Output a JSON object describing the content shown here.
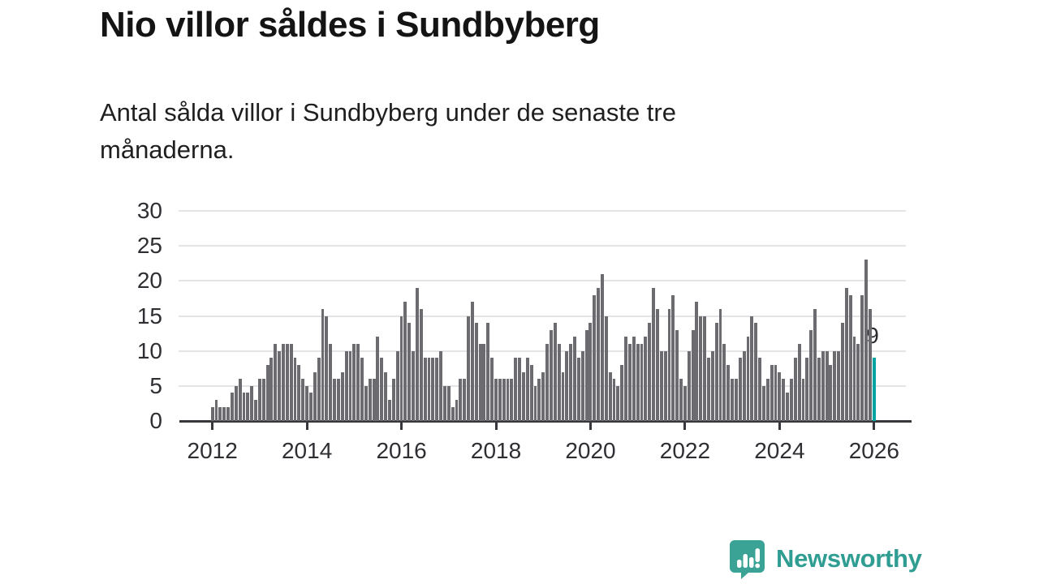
{
  "header": {
    "title": "Nio villor såldes i Sundbyberg",
    "subtitle": "Antal sålda villor i Sundbyberg under de senaste tre månaderna."
  },
  "colors": {
    "bar": "#6b6b70",
    "highlight": "#00a5a2",
    "gridline": "#e4e4e7",
    "axis": "#38383c",
    "brand_teal": "#3aa396"
  },
  "branding": {
    "name": "Newsworthy",
    "icon": "bar-chart-speech-bubble-icon"
  },
  "chart_data": {
    "type": "bar",
    "title": "Nio villor såldes i Sundbyberg",
    "subtitle": "Antal sålda villor i Sundbyberg under de senaste tre månaderna.",
    "unit": "antal sålda villor (rullande tre månader)",
    "frequency": "monthly",
    "x_start": "2012-01",
    "x_end": "2026-01",
    "x_tick_labels": [
      "2012",
      "2014",
      "2016",
      "2018",
      "2020",
      "2022",
      "2024",
      "2026"
    ],
    "y_ticks": [
      0,
      5,
      10,
      15,
      20,
      25,
      30
    ],
    "ylim": [
      0,
      30
    ],
    "grid": true,
    "highlight_last": true,
    "last_value_label": "9",
    "values": [
      2,
      3,
      2,
      2,
      2,
      4,
      5,
      6,
      4,
      4,
      5,
      3,
      6,
      6,
      8,
      9,
      11,
      10,
      11,
      11,
      11,
      9,
      8,
      6,
      5,
      4,
      7,
      9,
      16,
      15,
      11,
      6,
      6,
      7,
      10,
      10,
      11,
      11,
      9,
      5,
      6,
      6,
      12,
      9,
      7,
      3,
      6,
      10,
      15,
      17,
      14,
      10,
      19,
      16,
      9,
      9,
      9,
      9,
      10,
      5,
      5,
      2,
      3,
      6,
      6,
      15,
      17,
      14,
      11,
      11,
      14,
      9,
      6,
      6,
      6,
      6,
      6,
      9,
      9,
      7,
      9,
      8,
      5,
      6,
      7,
      11,
      13,
      14,
      11,
      7,
      10,
      11,
      12,
      9,
      10,
      13,
      14,
      18,
      19,
      21,
      15,
      7,
      6,
      5,
      8,
      12,
      11,
      12,
      11,
      11,
      12,
      14,
      19,
      16,
      10,
      10,
      16,
      18,
      13,
      6,
      5,
      10,
      13,
      17,
      15,
      15,
      9,
      10,
      14,
      16,
      11,
      8,
      6,
      6,
      9,
      10,
      12,
      15,
      14,
      9,
      5,
      6,
      8,
      8,
      7,
      6,
      4,
      6,
      9,
      11,
      6,
      9,
      13,
      16,
      9,
      10,
      10,
      8,
      10,
      10,
      14,
      19,
      18,
      12,
      11,
      18,
      23,
      16,
      9
    ]
  }
}
